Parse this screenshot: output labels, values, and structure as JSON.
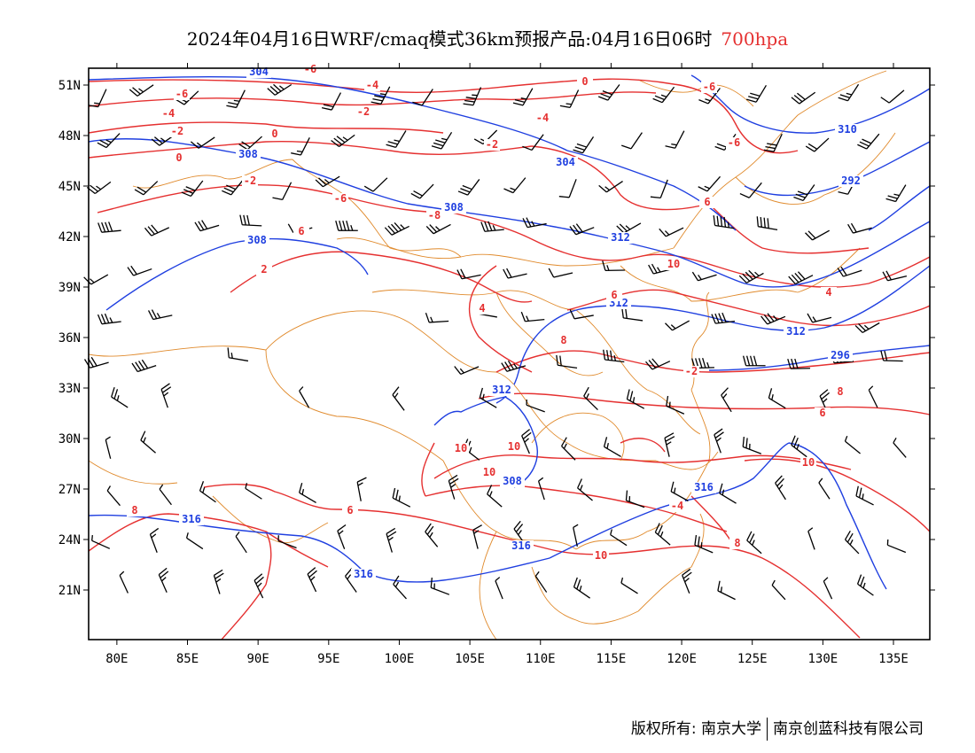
{
  "header": {
    "title": "2024年04月16日WRF/cmaq模式36km预报产品:04月16日06时",
    "level": "700hpa"
  },
  "map": {
    "lon_range": [
      78,
      138
    ],
    "lat_range": [
      18,
      51.5
    ],
    "lat_labels": [
      "51N",
      "48N",
      "45N",
      "42N",
      "39N",
      "36N",
      "33N",
      "30N",
      "27N",
      "24N",
      "21N"
    ],
    "lat_values": [
      51,
      48,
      45,
      42,
      39,
      36,
      33,
      30,
      27,
      24,
      21
    ],
    "lon_labels": [
      "80E",
      "85E",
      "90E",
      "95E",
      "100E",
      "105E",
      "110E",
      "115E",
      "120E",
      "125E",
      "130E",
      "135E"
    ],
    "lon_values": [
      80,
      85,
      90,
      95,
      100,
      105,
      110,
      115,
      120,
      125,
      130,
      135
    ],
    "colors": {
      "temperature": "#e53030",
      "height": "#1f3fe0",
      "border": "#e08a2c",
      "wind": "#000000"
    },
    "height_labels": [
      "304",
      "308",
      "304",
      "308",
      "308",
      "312",
      "312",
      "312",
      "316",
      "316",
      "316",
      "316",
      "308",
      "312",
      "296",
      "292",
      "310"
    ],
    "temp_labels": [
      "-6",
      "-6",
      "-4",
      "-4",
      "-2",
      "-2",
      "0",
      "0",
      "-2",
      "-4",
      "-2",
      "-6",
      "-8",
      "0",
      "-6",
      "6",
      "2",
      "4",
      "6",
      "8",
      "10",
      "10",
      "10",
      "6",
      "8",
      "10",
      "8",
      "10",
      "-4",
      "-2",
      "-6",
      "6",
      "4",
      "6",
      "8",
      "10"
    ]
  },
  "footer": {
    "copyright": "版权所有: 南京大学",
    "company": "南京创蓝科技有限公司"
  }
}
